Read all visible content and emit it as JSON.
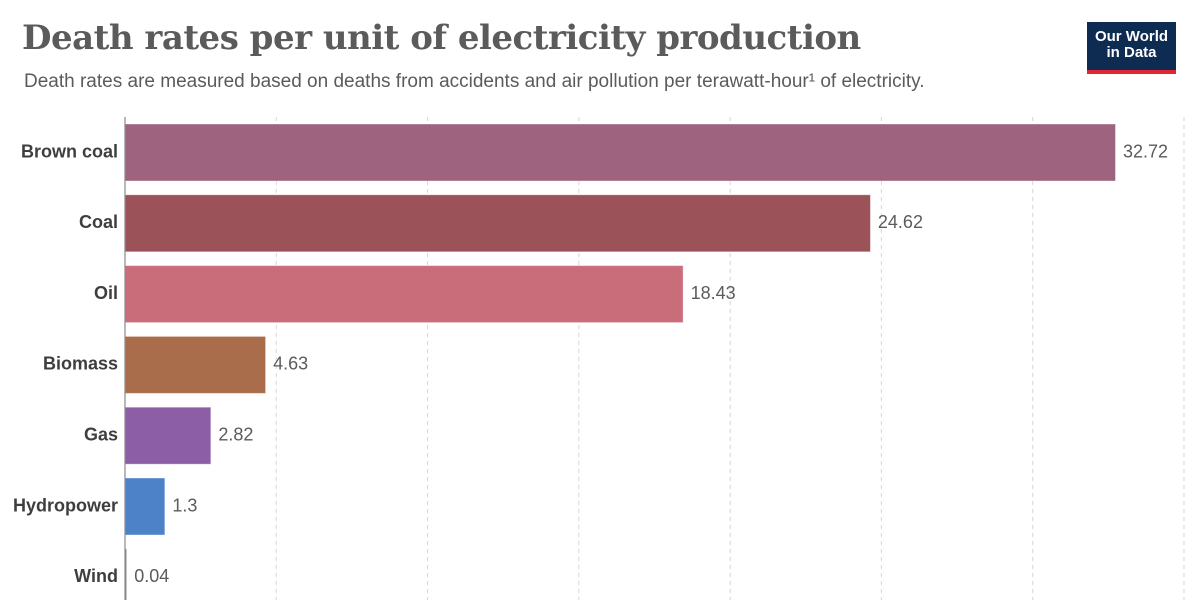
{
  "header": {
    "title": "Death rates per unit of electricity production",
    "subtitle": "Death rates are measured based on deaths from accidents and air pollution per terawatt-hour¹ of electricity.",
    "logo_line1": "Our World",
    "logo_line2": "in Data"
  },
  "colors": {
    "logo_bg": "#0e2b52",
    "logo_accent": "#e32636",
    "gridline": "#d6d6d6",
    "axis": "#8a8a8a"
  },
  "chart_data": {
    "type": "bar",
    "orientation": "horizontal",
    "title": "Death rates per unit of electricity production",
    "subtitle": "Death rates are measured based on deaths from accidents and air pollution per terawatt-hour¹ of electricity.",
    "categories": [
      "Brown coal",
      "Coal",
      "Oil",
      "Biomass",
      "Gas",
      "Hydropower",
      "Wind"
    ],
    "values": [
      32.72,
      24.62,
      18.43,
      4.63,
      2.82,
      1.3,
      0.04
    ],
    "value_labels": [
      "32.72",
      "24.62",
      "18.43",
      "4.63",
      "2.82",
      "1.3",
      "0.04"
    ],
    "colors": [
      "#9c617c",
      "#994f55",
      "#c86a78",
      "#a86a48",
      "#8a5ba3",
      "#4a80c7",
      "#8c8c8c"
    ],
    "xlim": [
      0,
      35
    ],
    "gridlines": [
      5,
      10,
      15,
      20,
      25,
      30,
      35
    ],
    "grid": true,
    "grid_style": "dashed-vertical",
    "legend": "none"
  }
}
